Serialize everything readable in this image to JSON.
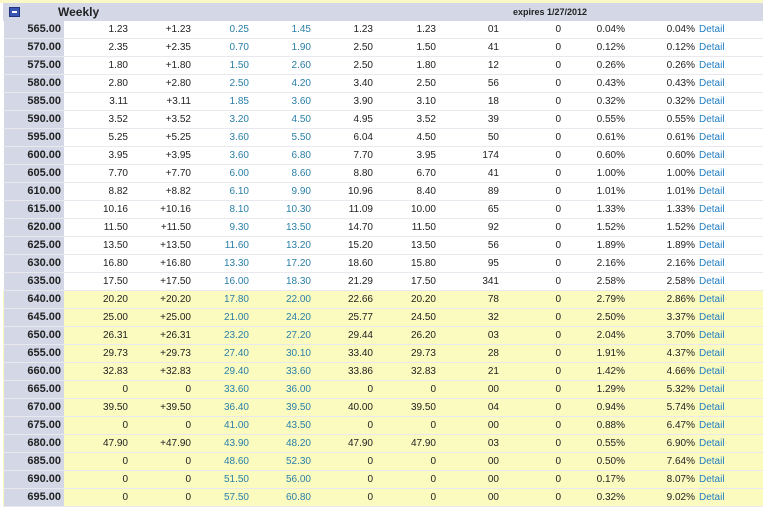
{
  "header": {
    "title": "Weekly",
    "expires": "expires 1/27/2012"
  },
  "detail_label": "Detail",
  "colors": {
    "header_bg": "#d3d7e6",
    "itm_bg": "#fbfbc0",
    "link": "#1f7cc0",
    "bid_ask": "#2a7fa8"
  },
  "rows": [
    {
      "strike": "565.00",
      "itm": false,
      "v": [
        "1.23",
        "+1.23",
        "0.25",
        "1.45",
        "1.23",
        "1.23",
        "01",
        "0",
        "0.04%",
        "0.04%"
      ]
    },
    {
      "strike": "570.00",
      "itm": false,
      "v": [
        "2.35",
        "+2.35",
        "0.70",
        "1.90",
        "2.50",
        "1.50",
        "41",
        "0",
        "0.12%",
        "0.12%"
      ]
    },
    {
      "strike": "575.00",
      "itm": false,
      "v": [
        "1.80",
        "+1.80",
        "1.50",
        "2.60",
        "2.50",
        "1.80",
        "12",
        "0",
        "0.26%",
        "0.26%"
      ]
    },
    {
      "strike": "580.00",
      "itm": false,
      "v": [
        "2.80",
        "+2.80",
        "2.50",
        "4.20",
        "3.40",
        "2.50",
        "56",
        "0",
        "0.43%",
        "0.43%"
      ]
    },
    {
      "strike": "585.00",
      "itm": false,
      "v": [
        "3.11",
        "+3.11",
        "1.85",
        "3.60",
        "3.90",
        "3.10",
        "18",
        "0",
        "0.32%",
        "0.32%"
      ]
    },
    {
      "strike": "590.00",
      "itm": false,
      "v": [
        "3.52",
        "+3.52",
        "3.20",
        "4.50",
        "4.95",
        "3.52",
        "39",
        "0",
        "0.55%",
        "0.55%"
      ]
    },
    {
      "strike": "595.00",
      "itm": false,
      "v": [
        "5.25",
        "+5.25",
        "3.60",
        "5.50",
        "6.04",
        "4.50",
        "50",
        "0",
        "0.61%",
        "0.61%"
      ]
    },
    {
      "strike": "600.00",
      "itm": false,
      "v": [
        "3.95",
        "+3.95",
        "3.60",
        "6.80",
        "7.70",
        "3.95",
        "174",
        "0",
        "0.60%",
        "0.60%"
      ]
    },
    {
      "strike": "605.00",
      "itm": false,
      "v": [
        "7.70",
        "+7.70",
        "6.00",
        "8.60",
        "8.80",
        "6.70",
        "41",
        "0",
        "1.00%",
        "1.00%"
      ]
    },
    {
      "strike": "610.00",
      "itm": false,
      "v": [
        "8.82",
        "+8.82",
        "6.10",
        "9.90",
        "10.96",
        "8.40",
        "89",
        "0",
        "1.01%",
        "1.01%"
      ]
    },
    {
      "strike": "615.00",
      "itm": false,
      "v": [
        "10.16",
        "+10.16",
        "8.10",
        "10.30",
        "11.09",
        "10.00",
        "65",
        "0",
        "1.33%",
        "1.33%"
      ]
    },
    {
      "strike": "620.00",
      "itm": false,
      "v": [
        "11.50",
        "+11.50",
        "9.30",
        "13.50",
        "14.70",
        "11.50",
        "92",
        "0",
        "1.52%",
        "1.52%"
      ]
    },
    {
      "strike": "625.00",
      "itm": false,
      "v": [
        "13.50",
        "+13.50",
        "11.60",
        "13.20",
        "15.20",
        "13.50",
        "56",
        "0",
        "1.89%",
        "1.89%"
      ]
    },
    {
      "strike": "630.00",
      "itm": false,
      "v": [
        "16.80",
        "+16.80",
        "13.30",
        "17.20",
        "18.60",
        "15.80",
        "95",
        "0",
        "2.16%",
        "2.16%"
      ]
    },
    {
      "strike": "635.00",
      "itm": false,
      "v": [
        "17.50",
        "+17.50",
        "16.00",
        "18.30",
        "21.29",
        "17.50",
        "341",
        "0",
        "2.58%",
        "2.58%"
      ]
    },
    {
      "strike": "640.00",
      "itm": true,
      "v": [
        "20.20",
        "+20.20",
        "17.80",
        "22.00",
        "22.66",
        "20.20",
        "78",
        "0",
        "2.79%",
        "2.86%"
      ]
    },
    {
      "strike": "645.00",
      "itm": true,
      "v": [
        "25.00",
        "+25.00",
        "21.00",
        "24.20",
        "25.77",
        "24.50",
        "32",
        "0",
        "2.50%",
        "3.37%"
      ]
    },
    {
      "strike": "650.00",
      "itm": true,
      "v": [
        "26.31",
        "+26.31",
        "23.20",
        "27.20",
        "29.44",
        "26.20",
        "03",
        "0",
        "2.04%",
        "3.70%"
      ]
    },
    {
      "strike": "655.00",
      "itm": true,
      "v": [
        "29.73",
        "+29.73",
        "27.40",
        "30.10",
        "33.40",
        "29.73",
        "28",
        "0",
        "1.91%",
        "4.37%"
      ]
    },
    {
      "strike": "660.00",
      "itm": true,
      "v": [
        "32.83",
        "+32.83",
        "29.40",
        "33.60",
        "33.86",
        "32.83",
        "21",
        "0",
        "1.42%",
        "4.66%"
      ]
    },
    {
      "strike": "665.00",
      "itm": true,
      "v": [
        "0",
        "0",
        "33.60",
        "36.00",
        "0",
        "0",
        "00",
        "0",
        "1.29%",
        "5.32%"
      ]
    },
    {
      "strike": "670.00",
      "itm": true,
      "v": [
        "39.50",
        "+39.50",
        "36.40",
        "39.50",
        "40.00",
        "39.50",
        "04",
        "0",
        "0.94%",
        "5.74%"
      ]
    },
    {
      "strike": "675.00",
      "itm": true,
      "v": [
        "0",
        "0",
        "41.00",
        "43.50",
        "0",
        "0",
        "00",
        "0",
        "0.88%",
        "6.47%"
      ]
    },
    {
      "strike": "680.00",
      "itm": true,
      "v": [
        "47.90",
        "+47.90",
        "43.90",
        "48.20",
        "47.90",
        "47.90",
        "03",
        "0",
        "0.55%",
        "6.90%"
      ]
    },
    {
      "strike": "685.00",
      "itm": true,
      "v": [
        "0",
        "0",
        "48.60",
        "52.30",
        "0",
        "0",
        "00",
        "0",
        "0.50%",
        "7.64%"
      ]
    },
    {
      "strike": "690.00",
      "itm": true,
      "v": [
        "0",
        "0",
        "51.50",
        "56.00",
        "0",
        "0",
        "00",
        "0",
        "0.17%",
        "8.07%"
      ]
    },
    {
      "strike": "695.00",
      "itm": true,
      "v": [
        "0",
        "0",
        "57.50",
        "60.80",
        "0",
        "0",
        "00",
        "0",
        "0.32%",
        "9.02%"
      ]
    }
  ]
}
